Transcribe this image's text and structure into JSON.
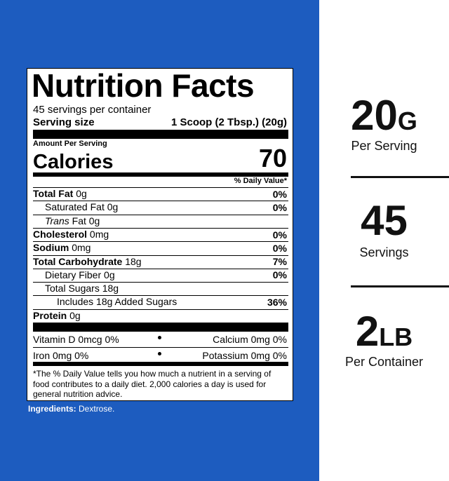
{
  "label": {
    "title": "Nutrition Facts",
    "servings": "45 servings per container",
    "serving_size_label": "Serving size",
    "serving_size": "1 Scoop (2 Tbsp.) (20g)",
    "amount_per_serving": "Amount Per Serving",
    "calories_label": "Calories",
    "calories": "70",
    "daily_value_header": "% Daily Value*",
    "nutrients": [
      {
        "name": "Total Fat",
        "amount": "0g",
        "dv": "0%",
        "bold": true,
        "indent": 0
      },
      {
        "name": "Saturated Fat",
        "amount": "0g",
        "dv": "0%",
        "bold": false,
        "indent": 1
      },
      {
        "name_em": "Trans",
        "name": "Fat",
        "amount": "0g",
        "bold": false,
        "indent": 1
      },
      {
        "name": "Cholesterol",
        "amount": "0mg",
        "dv": "0%",
        "bold": true,
        "indent": 0
      },
      {
        "name": "Sodium",
        "amount": "0mg",
        "dv": "0%",
        "bold": true,
        "indent": 0
      },
      {
        "name": "Total Carbohydrate",
        "amount": "18g",
        "dv": "7%",
        "bold": true,
        "indent": 0
      },
      {
        "name": "Dietary Fiber",
        "amount": "0g",
        "dv": "0%",
        "bold": false,
        "indent": 1
      },
      {
        "name": "Total Sugars",
        "amount": "18g",
        "bold": false,
        "indent": 1
      },
      {
        "name": "Includes 18g Added Sugars",
        "dv": "36%",
        "bold": false,
        "indent": 2
      },
      {
        "name": "Protein",
        "amount": "0g",
        "bold": true,
        "indent": 0
      }
    ],
    "vitamins": [
      [
        "Vitamin D 0mcg 0%",
        "Calcium 0mg 0%"
      ],
      [
        "Iron 0mg 0%",
        "Potassium 0mg 0%"
      ]
    ],
    "footnote": "*The % Daily Value tells you how much a nutrient in a serving of food contributes to a daily diet. 2,000 calories a day is used for general nutrition advice."
  },
  "ingredients": {
    "label": "Ingredients:",
    "text": "Dextrose."
  },
  "stats": [
    {
      "value": "20",
      "unit": "G",
      "caption": "Per Serving"
    },
    {
      "value": "45",
      "caption": "Servings"
    },
    {
      "value": "2",
      "unit": "LB",
      "caption": "Per Container"
    }
  ]
}
